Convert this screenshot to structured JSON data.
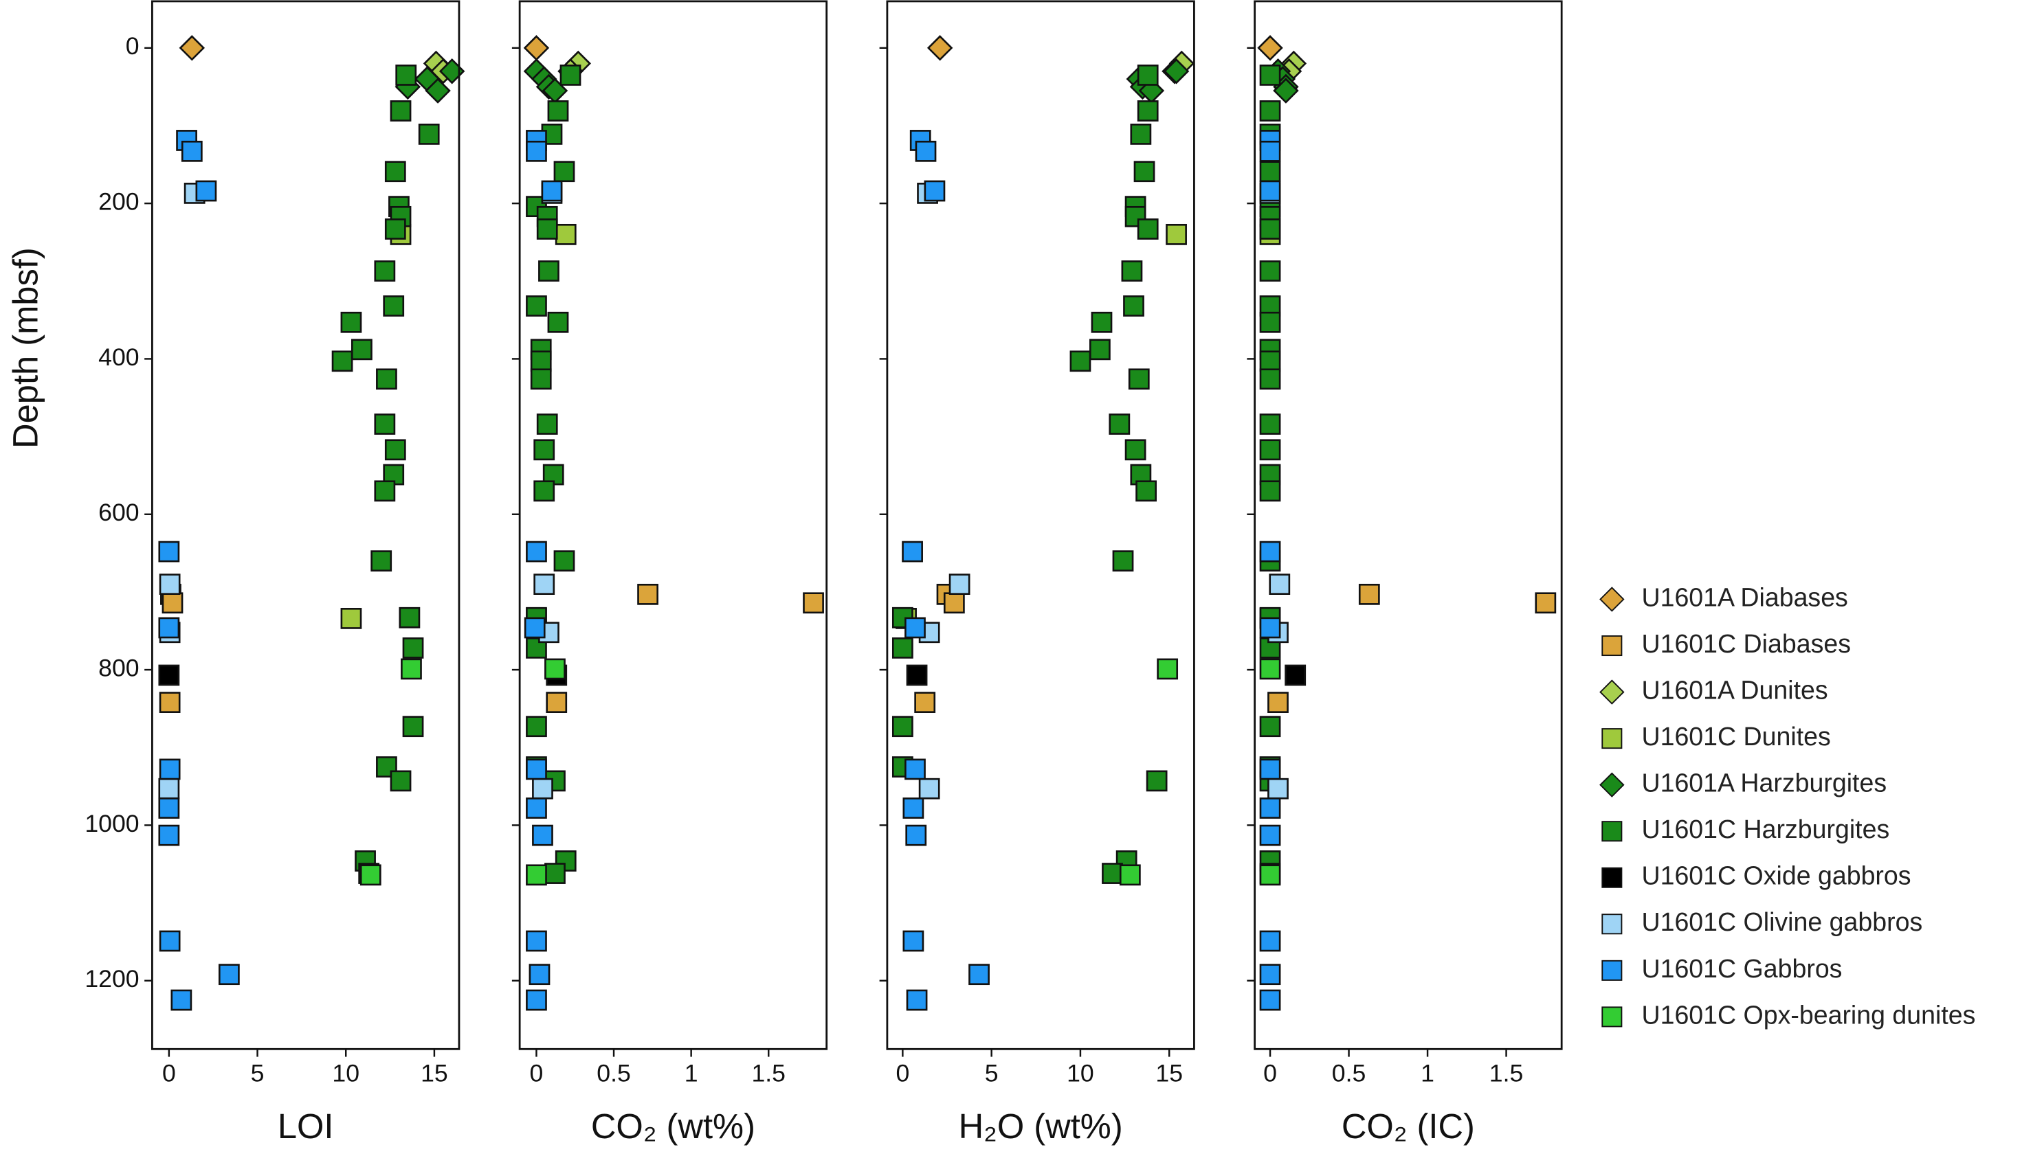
{
  "chart_data": {
    "type": "scatter",
    "ylabel": "Depth (mbsf)",
    "ylim": [
      -60,
      1288
    ],
    "y_inverted": true,
    "yticks": [
      0,
      200,
      400,
      600,
      800,
      1000,
      1200
    ],
    "series": [
      {
        "name": "U1601A Diabases",
        "color": "#dca33a",
        "marker": "diamond",
        "depth": [
          0
        ]
      },
      {
        "name": "U1601C Diabases",
        "color": "#dba43a",
        "marker": "square",
        "depth": [
          703,
          714,
          842
        ]
      },
      {
        "name": "U1601A Dunites",
        "color": "#a8d04f",
        "marker": "diamond",
        "depth": [
          20,
          30
        ]
      },
      {
        "name": "U1601C Dunites",
        "color": "#9fc93c",
        "marker": "square",
        "depth": [
          240,
          734
        ]
      },
      {
        "name": "U1601A Harzburgites",
        "color": "#1a8a1a",
        "marker": "diamond",
        "depth": [
          30,
          40,
          50,
          55
        ]
      },
      {
        "name": "U1601C Harzburgites",
        "color": "#1a8a1a",
        "marker": "square",
        "depth": [
          35,
          81,
          111,
          159,
          204,
          217,
          233,
          287,
          332,
          353,
          388,
          403,
          426,
          484,
          517,
          549,
          570,
          660,
          733,
          772,
          873,
          925,
          943,
          1046,
          1062
        ]
      },
      {
        "name": "U1601C Oxide gabbros",
        "color": "#000000",
        "marker": "square",
        "depth": [
          807
        ]
      },
      {
        "name": "U1601C Olivine gabbros",
        "color": "#9fd4f5",
        "marker": "square",
        "depth": [
          187,
          690,
          752,
          953
        ]
      },
      {
        "name": "U1601C Gabbros",
        "color": "#2196f3",
        "marker": "square",
        "depth": [
          119,
          133,
          184,
          648,
          746,
          928,
          978,
          1013,
          1149,
          1192,
          1225
        ]
      },
      {
        "name": "U1601C Opx-bearing dunites",
        "color": "#33cc33",
        "marker": "square",
        "depth": [
          799,
          1064
        ]
      }
    ],
    "panels": [
      {
        "xlabel": "LOI",
        "xlim": [
          -0.95,
          16.4
        ],
        "xticks": [
          0,
          5,
          10,
          15
        ],
        "x": [
          [
            1.3
          ],
          [
            0.1,
            0.2,
            0.05
          ],
          [
            15.1,
            15.5
          ],
          [
            13.1,
            10.3
          ],
          [
            16.0,
            14.6,
            13.5,
            15.2
          ],
          [
            13.4,
            13.1,
            14.7,
            12.8,
            13.0,
            13.1,
            12.8,
            12.2,
            12.7,
            10.3,
            10.9,
            9.8,
            12.3,
            12.2,
            12.8,
            12.7,
            12.2,
            12.0,
            13.6,
            13.8,
            13.8,
            12.3,
            13.1,
            11.1,
            11.3
          ],
          [
            0.0
          ],
          [
            1.45,
            0.05,
            0.05,
            0.0
          ],
          [
            1.0,
            1.3,
            2.1,
            0.0,
            0.0,
            0.05,
            0.0,
            0.0,
            0.05,
            3.4,
            0.7
          ],
          [
            13.7,
            11.4
          ]
        ]
      },
      {
        "xlabel": "CO₂ (wt%)",
        "xlim": [
          -0.108,
          1.875
        ],
        "xticks": [
          0,
          0.5,
          1,
          1.5
        ],
        "x": [
          [
            0.0
          ],
          [
            0.72,
            1.79,
            0.13
          ],
          [
            0.27,
            0.22
          ],
          [
            0.19,
            0.0
          ],
          [
            0.0,
            0.05,
            0.08,
            0.12
          ],
          [
            0.22,
            0.14,
            0.1,
            0.18,
            0.0,
            0.07,
            0.07,
            0.08,
            0.0,
            0.14,
            0.03,
            0.03,
            0.03,
            0.07,
            0.05,
            0.11,
            0.05,
            0.18,
            0.0,
            0.0,
            0.0,
            0.0,
            0.12,
            0.19,
            0.12
          ],
          [
            0.13
          ],
          [
            0.1,
            0.05,
            0.08,
            0.04
          ],
          [
            0.0,
            0.0,
            0.1,
            0.0,
            -0.01,
            0.0,
            0.0,
            0.04,
            0.0,
            0.02,
            0.0
          ],
          [
            0.12,
            0.0
          ]
        ]
      },
      {
        "xlabel": "H₂O (wt%)",
        "xlim": [
          -0.87,
          16.4
        ],
        "xticks": [
          0,
          5,
          10,
          15
        ],
        "x": [
          [
            2.1
          ],
          [
            2.5,
            2.9,
            1.25
          ],
          [
            15.7,
            15.3
          ],
          [
            15.4,
            0.2
          ],
          [
            15.4,
            13.3,
            13.5,
            14.0
          ],
          [
            13.8,
            13.8,
            13.4,
            13.6,
            13.1,
            13.1,
            13.8,
            12.9,
            13.0,
            11.2,
            11.1,
            10.0,
            13.3,
            12.2,
            13.1,
            13.4,
            13.7,
            12.4,
            0.0,
            0.0,
            0.0,
            0.0,
            14.3,
            12.6,
            11.8
          ],
          [
            0.8
          ],
          [
            1.4,
            3.2,
            1.5,
            1.5
          ],
          [
            1.0,
            1.3,
            1.8,
            0.55,
            0.7,
            0.7,
            0.6,
            0.75,
            0.6,
            4.3,
            0.8
          ],
          [
            14.9,
            12.8
          ]
        ]
      },
      {
        "xlabel": "CO₂ (IC)",
        "xlim": [
          -0.098,
          1.852
        ],
        "xticks": [
          0,
          0.5,
          1,
          1.5
        ],
        "x": [
          [
            0.0
          ],
          [
            0.63,
            1.75,
            0.05
          ],
          [
            0.15,
            0.12
          ],
          [
            0.0,
            0.0
          ],
          [
            0.05,
            0.08,
            0.1,
            0.1
          ],
          [
            0.0,
            0.0,
            0.0,
            0.0,
            0.0,
            0.0,
            0.0,
            0.0,
            0.0,
            0.0,
            0.0,
            0.0,
            0.0,
            0.0,
            0.0,
            0.0,
            0.0,
            0.0,
            0.0,
            0.0,
            0.0,
            0.0,
            0.0,
            0.0,
            0.0
          ],
          [
            0.16
          ],
          [
            0.0,
            0.06,
            0.05,
            0.05
          ],
          [
            0.0,
            0.0,
            0.0,
            0.0,
            0.0,
            0.0,
            0.0,
            0.0,
            0.0,
            0.0,
            0.0
          ],
          [
            0.0,
            0.0
          ]
        ]
      }
    ]
  }
}
